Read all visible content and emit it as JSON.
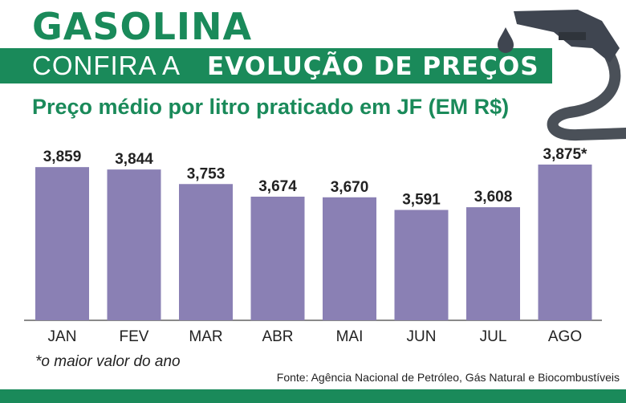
{
  "header": {
    "title": "GASOLINA",
    "banner_light": "CONFIRA A",
    "banner_bold": "EVOLUÇÃO DE PREÇOS",
    "subtitle": "Preço médio por litro praticado em JF (EM R$)"
  },
  "chart_data": {
    "type": "bar",
    "categories": [
      "JAN",
      "FEV",
      "MAR",
      "ABR",
      "MAI",
      "JUN",
      "JUL",
      "AGO"
    ],
    "values": [
      3.859,
      3.844,
      3.753,
      3.674,
      3.67,
      3.591,
      3.608,
      3.875
    ],
    "value_labels": [
      "3,859",
      "3,844",
      "3,753",
      "3,674",
      "3,670",
      "3,591",
      "3,608",
      "3,875*"
    ],
    "ylim": [
      2.9,
      3.9
    ],
    "bar_color": "#8a80b4",
    "grid": false
  },
  "footnote": "*o maior valor do ano",
  "source": "Fonte: Agência Nacional de Petróleo, Gás Natural e Biocombustíveis",
  "colors": {
    "accent": "#1a8a5a",
    "bar": "#8a80b4",
    "pump": "#3f4550"
  }
}
